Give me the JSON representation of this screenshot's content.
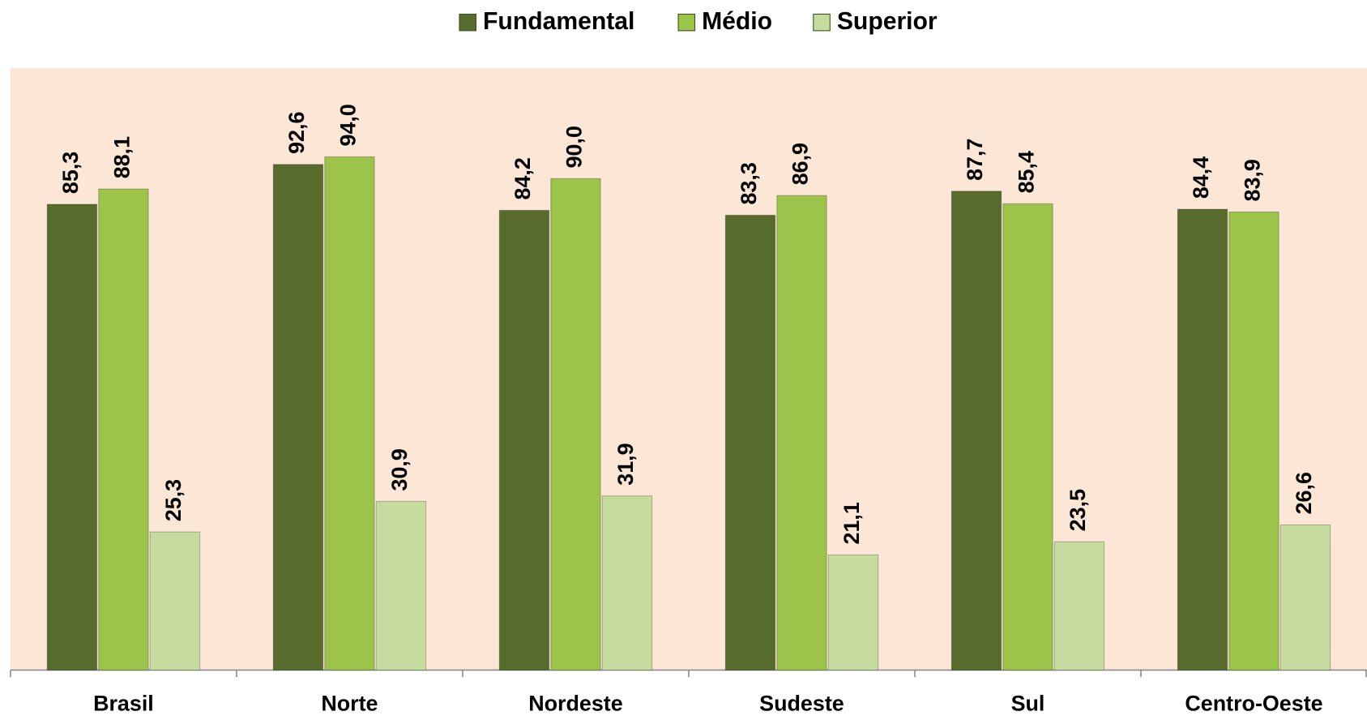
{
  "chart_data": {
    "type": "bar",
    "categories": [
      "Brasil",
      "Norte",
      "Nordeste",
      "Sudeste",
      "Sul",
      "Centro-Oeste"
    ],
    "series": [
      {
        "name": "Fundamental",
        "color": "#566b2c",
        "values": [
          85.3,
          92.6,
          84.2,
          83.3,
          87.7,
          84.4
        ],
        "value_labels": [
          "85,3",
          "92,6",
          "84,2",
          "83,3",
          "87,7",
          "84,4"
        ]
      },
      {
        "name": "Médio",
        "color": "#9cc34a",
        "values": [
          88.1,
          94.0,
          90.0,
          86.9,
          85.4,
          83.9
        ],
        "value_labels": [
          "88,1",
          "94,0",
          "90,0",
          "86,9",
          "85,4",
          "83,9"
        ]
      },
      {
        "name": "Superior",
        "color": "#c6dc9e",
        "values": [
          25.3,
          30.9,
          31.9,
          21.1,
          23.5,
          26.6
        ],
        "value_labels": [
          "25,3",
          "30,9",
          "31,9",
          "21,1",
          "23,5",
          "26,6"
        ]
      }
    ],
    "legend": "top"
  }
}
